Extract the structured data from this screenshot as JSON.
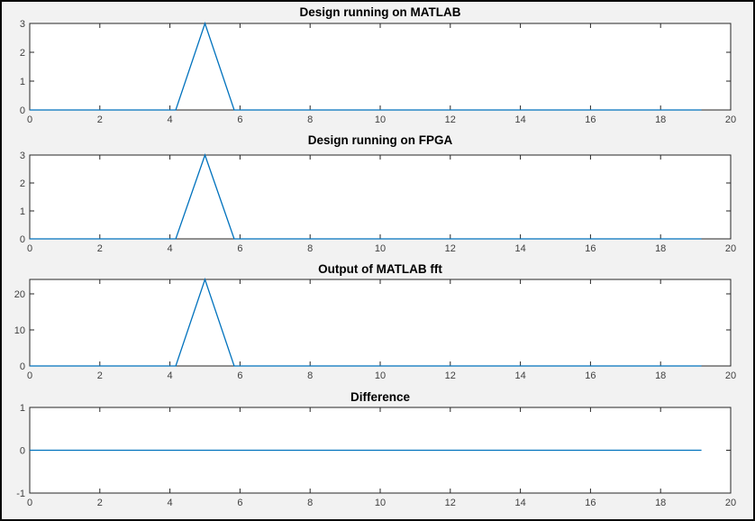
{
  "figure": {
    "background": "#f2f2f2",
    "plot_background": "#ffffff",
    "axes_color": "#262626",
    "tick_label_color": "#404040",
    "title_color": "#000000",
    "line_color": "#0072bd"
  },
  "chart_data": [
    {
      "type": "line",
      "title": "Design running on MATLAB",
      "x": [
        0,
        4.1667,
        5,
        5.8333,
        19.1667
      ],
      "y": [
        0,
        0,
        3,
        0,
        0
      ],
      "xlim": [
        0,
        20
      ],
      "ylim": [
        0,
        3
      ],
      "xticks": [
        0,
        2,
        4,
        6,
        8,
        10,
        12,
        14,
        16,
        18,
        20
      ],
      "yticks": [
        0,
        1,
        2,
        3
      ],
      "grid": false
    },
    {
      "type": "line",
      "title": "Design running on FPGA",
      "x": [
        0,
        4.1667,
        5,
        5.8333,
        19.1667
      ],
      "y": [
        0,
        0,
        3,
        0,
        0
      ],
      "xlim": [
        0,
        20
      ],
      "ylim": [
        0,
        3
      ],
      "xticks": [
        0,
        2,
        4,
        6,
        8,
        10,
        12,
        14,
        16,
        18,
        20
      ],
      "yticks": [
        0,
        1,
        2,
        3
      ],
      "grid": false
    },
    {
      "type": "line",
      "title": "Output of MATLAB fft",
      "x": [
        0,
        4.1667,
        5,
        5.8333,
        19.1667
      ],
      "y": [
        0,
        0,
        24,
        0,
        0
      ],
      "xlim": [
        0,
        20
      ],
      "ylim": [
        0,
        24
      ],
      "xticks": [
        0,
        2,
        4,
        6,
        8,
        10,
        12,
        14,
        16,
        18,
        20
      ],
      "yticks": [
        0,
        10,
        20
      ],
      "grid": false
    },
    {
      "type": "line",
      "title": "Difference",
      "x": [
        0,
        19.1667
      ],
      "y": [
        0,
        0
      ],
      "xlim": [
        0,
        20
      ],
      "ylim": [
        -1,
        1
      ],
      "xticks": [
        0,
        2,
        4,
        6,
        8,
        10,
        12,
        14,
        16,
        18,
        20
      ],
      "yticks": [
        -1,
        0,
        1
      ],
      "grid": false
    }
  ]
}
